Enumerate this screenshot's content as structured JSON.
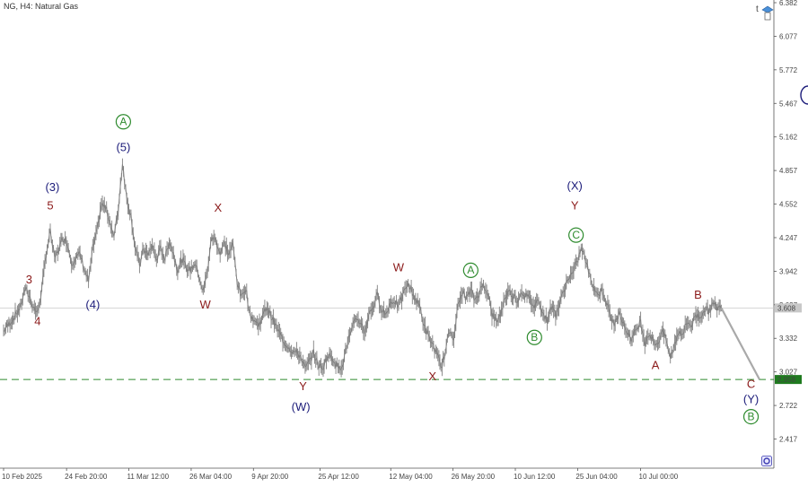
{
  "header": {
    "title": "NG, H4:  Natural Gas"
  },
  "colors": {
    "price": "#808080",
    "current_line": "#c8c8c8",
    "support_line": "#2e8b2e",
    "wave_red": "#8b1a1a",
    "wave_blue": "#1c1c7a",
    "wave_green": "#2e8b2e",
    "badge_dark": "#333333",
    "badge_green": "#1f7a1f",
    "projection": "#a9a9a9"
  },
  "chart_data": {
    "type": "line",
    "title": "NG, H4:  Natural Gas",
    "ylim": [
      2.25,
      6.382
    ],
    "yticks": [
      "6.382",
      "6.077",
      "5.772",
      "5.467",
      "5.162",
      "4.857",
      "4.552",
      "4.247",
      "3.942",
      "3.637",
      "3.332",
      "3.027",
      "2.722",
      "2.417"
    ],
    "xticks": [
      {
        "label": "10 Feb 2025",
        "t": 0
      },
      {
        "label": "24 Feb 20:00",
        "t": 14.83
      },
      {
        "label": "11 Mar 12:00",
        "t": 29.5
      },
      {
        "label": "26 Mar 04:00",
        "t": 44.17
      },
      {
        "label": "9 Apr 20:00",
        "t": 58.83
      },
      {
        "label": "25 Apr 12:00",
        "t": 74.5
      },
      {
        "label": "12 May 04:00",
        "t": 91.17
      },
      {
        "label": "26 May 20:00",
        "t": 105.83
      },
      {
        "label": "10 Jun 12:00",
        "t": 120.5
      },
      {
        "label": "25 Jun 04:00",
        "t": 135.17
      },
      {
        "label": "10 Jul 00:00",
        "t": 150.0
      }
    ],
    "tmax": 178,
    "current_price": 3.608,
    "current_price_label": "3.608",
    "support_price": 2.958,
    "support_price_label": "2.958",
    "series": [
      {
        "values": [
          [
            0,
            3.4
          ],
          [
            2,
            3.5
          ],
          [
            4,
            3.62
          ],
          [
            5,
            3.78
          ],
          [
            6,
            3.72
          ],
          [
            7,
            3.62
          ],
          [
            8,
            3.56
          ],
          [
            9,
            3.78
          ],
          [
            10,
            4.1
          ],
          [
            11,
            4.3
          ],
          [
            12,
            4.05
          ],
          [
            13,
            4.15
          ],
          [
            14,
            4.25
          ],
          [
            15,
            4.2
          ],
          [
            16,
            4.02
          ],
          [
            18,
            4.1
          ],
          [
            19,
            3.96
          ],
          [
            20,
            3.85
          ],
          [
            21,
            4.15
          ],
          [
            22,
            4.3
          ],
          [
            23,
            4.55
          ],
          [
            24,
            4.52
          ],
          [
            25,
            4.4
          ],
          [
            26,
            4.25
          ],
          [
            27,
            4.5
          ],
          [
            28,
            4.93
          ],
          [
            29,
            4.6
          ],
          [
            30,
            4.45
          ],
          [
            31,
            4.15
          ],
          [
            32,
            4.0
          ],
          [
            33,
            4.15
          ],
          [
            34,
            4.08
          ],
          [
            35,
            4.18
          ],
          [
            36,
            4.05
          ],
          [
            37,
            4.15
          ],
          [
            38,
            4.05
          ],
          [
            39,
            4.22
          ],
          [
            40,
            4.1
          ],
          [
            41,
            3.95
          ],
          [
            42,
            4.05
          ],
          [
            43,
            3.98
          ],
          [
            44,
            3.95
          ],
          [
            45,
            4.02
          ],
          [
            46,
            3.9
          ],
          [
            47,
            3.75
          ],
          [
            48,
            3.95
          ],
          [
            49,
            4.25
          ],
          [
            50,
            4.22
          ],
          [
            51,
            4.1
          ],
          [
            52,
            4.2
          ],
          [
            53,
            4.1
          ],
          [
            54,
            4.18
          ],
          [
            55,
            3.85
          ],
          [
            56,
            3.7
          ],
          [
            57,
            3.8
          ],
          [
            58,
            3.55
          ],
          [
            60,
            3.45
          ],
          [
            62,
            3.62
          ],
          [
            64,
            3.45
          ],
          [
            66,
            3.3
          ],
          [
            68,
            3.22
          ],
          [
            70,
            3.17
          ],
          [
            71,
            3.05
          ],
          [
            72,
            3.12
          ],
          [
            73,
            3.2
          ],
          [
            74,
            3.1
          ],
          [
            75,
            3.05
          ],
          [
            76,
            3.15
          ],
          [
            77,
            3.18
          ],
          [
            78,
            3.12
          ],
          [
            79,
            3.05
          ],
          [
            80,
            3.12
          ],
          [
            81,
            3.3
          ],
          [
            82,
            3.4
          ],
          [
            83,
            3.52
          ],
          [
            84,
            3.48
          ],
          [
            85,
            3.38
          ],
          [
            86,
            3.55
          ],
          [
            87,
            3.62
          ],
          [
            88,
            3.72
          ],
          [
            89,
            3.6
          ],
          [
            90,
            3.55
          ],
          [
            91,
            3.65
          ],
          [
            92,
            3.68
          ],
          [
            93,
            3.62
          ],
          [
            94,
            3.72
          ],
          [
            95,
            3.82
          ],
          [
            96,
            3.78
          ],
          [
            97,
            3.68
          ],
          [
            98,
            3.62
          ],
          [
            99,
            3.45
          ],
          [
            100,
            3.35
          ],
          [
            101,
            3.28
          ],
          [
            102,
            3.18
          ],
          [
            103,
            3.07
          ],
          [
            104,
            3.2
          ],
          [
            105,
            3.4
          ],
          [
            106,
            3.35
          ],
          [
            107,
            3.62
          ],
          [
            108,
            3.75
          ],
          [
            109,
            3.7
          ],
          [
            110,
            3.76
          ],
          [
            111,
            3.68
          ],
          [
            112,
            3.75
          ],
          [
            113,
            3.82
          ],
          [
            114,
            3.75
          ],
          [
            115,
            3.55
          ],
          [
            116,
            3.48
          ],
          [
            117,
            3.55
          ],
          [
            118,
            3.7
          ],
          [
            119,
            3.76
          ],
          [
            120,
            3.72
          ],
          [
            121,
            3.68
          ],
          [
            122,
            3.76
          ],
          [
            123,
            3.72
          ],
          [
            124,
            3.68
          ],
          [
            125,
            3.62
          ],
          [
            126,
            3.7
          ],
          [
            127,
            3.55
          ],
          [
            128,
            3.5
          ],
          [
            129,
            3.62
          ],
          [
            130,
            3.55
          ],
          [
            131,
            3.65
          ],
          [
            132,
            3.78
          ],
          [
            133,
            3.88
          ],
          [
            134,
            3.92
          ],
          [
            135,
            4.02
          ],
          [
            136,
            4.15
          ],
          [
            137,
            4.05
          ],
          [
            138,
            3.9
          ],
          [
            139,
            3.8
          ],
          [
            140,
            3.72
          ],
          [
            141,
            3.78
          ],
          [
            142,
            3.65
          ],
          [
            143,
            3.52
          ],
          [
            144,
            3.45
          ],
          [
            145,
            3.6
          ],
          [
            146,
            3.45
          ],
          [
            147,
            3.38
          ],
          [
            148,
            3.32
          ],
          [
            149,
            3.42
          ],
          [
            150,
            3.48
          ],
          [
            151,
            3.3
          ],
          [
            152,
            3.38
          ],
          [
            153,
            3.3
          ],
          [
            154,
            3.28
          ],
          [
            155,
            3.4
          ],
          [
            156,
            3.32
          ],
          [
            157,
            3.15
          ],
          [
            158,
            3.28
          ],
          [
            159,
            3.4
          ],
          [
            160,
            3.38
          ],
          [
            161,
            3.48
          ],
          [
            162,
            3.45
          ],
          [
            163,
            3.55
          ],
          [
            164,
            3.52
          ],
          [
            165,
            3.6
          ],
          [
            166,
            3.58
          ],
          [
            167,
            3.64
          ],
          [
            168,
            3.61
          ],
          [
            169,
            3.608
          ]
        ]
      }
    ],
    "projection": [
      [
        169,
        3.608
      ],
      [
        178,
        2.958
      ]
    ],
    "wave_labels": [
      {
        "text": "3",
        "t": 6,
        "price": 3.86,
        "color": "red"
      },
      {
        "text": "4",
        "t": 8,
        "price": 3.48,
        "color": "red"
      },
      {
        "text": "5",
        "t": 11,
        "price": 4.53,
        "color": "red"
      },
      {
        "text": "(3)",
        "t": 11.5,
        "price": 4.7,
        "color": "blue"
      },
      {
        "text": "(4)",
        "t": 21,
        "price": 3.63,
        "color": "blue"
      },
      {
        "text": "(5)",
        "t": 28.2,
        "price": 5.06,
        "color": "blue"
      },
      {
        "text": "A",
        "t": 28.2,
        "price": 5.3,
        "color": "green",
        "circled": true
      },
      {
        "text": "X",
        "t": 50.5,
        "price": 4.51,
        "color": "red"
      },
      {
        "text": "W",
        "t": 47.5,
        "price": 3.63,
        "color": "red"
      },
      {
        "text": "Y",
        "t": 70.5,
        "price": 2.89,
        "color": "red"
      },
      {
        "text": "(W)",
        "t": 70,
        "price": 2.7,
        "color": "blue"
      },
      {
        "text": "W",
        "t": 93,
        "price": 3.97,
        "color": "red"
      },
      {
        "text": "X",
        "t": 101,
        "price": 2.98,
        "color": "red"
      },
      {
        "text": "A",
        "t": 110,
        "price": 3.95,
        "color": "green",
        "circled": true
      },
      {
        "text": "B",
        "t": 125,
        "price": 3.34,
        "color": "green",
        "circled": true
      },
      {
        "text": "(X)",
        "t": 134.5,
        "price": 4.71,
        "color": "blue"
      },
      {
        "text": "Y",
        "t": 134.5,
        "price": 4.53,
        "color": "red"
      },
      {
        "text": "C",
        "t": 134.8,
        "price": 4.27,
        "color": "green",
        "circled": true
      },
      {
        "text": "B",
        "t": 163.5,
        "price": 3.72,
        "color": "red"
      },
      {
        "text": "A",
        "t": 153.5,
        "price": 3.08,
        "color": "red"
      },
      {
        "text": "C",
        "t": 176,
        "price": 2.91,
        "color": "red"
      },
      {
        "text": "(Y)",
        "t": 176,
        "price": 2.77,
        "color": "blue"
      },
      {
        "text": "B",
        "t": 176,
        "price": 2.62,
        "color": "green",
        "circled": true
      }
    ]
  },
  "toolbar": {
    "top_right_letter": "t",
    "top_right_icon": "trader-hat-icon",
    "bottom_right_icon": "settings-circle-icon"
  }
}
